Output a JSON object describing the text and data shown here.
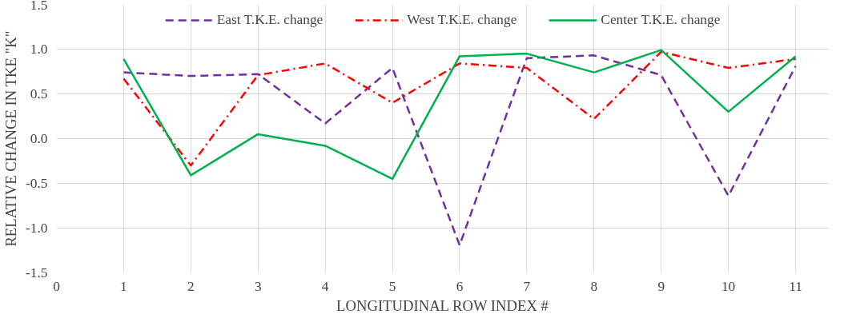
{
  "chart_data": {
    "type": "line",
    "xlabel": "LONGITUDINAL ROW INDEX #",
    "ylabel": "RELATIVE CHANGE IN TKE \"K\"",
    "x": [
      1,
      2,
      3,
      4,
      5,
      6,
      7,
      8,
      9,
      10,
      11
    ],
    "series": [
      {
        "name": "East T.K.E. change",
        "color": "#7030a0",
        "line_style": "dashed",
        "values": [
          0.74,
          0.7,
          0.72,
          0.17,
          0.79,
          -1.19,
          0.9,
          0.93,
          0.71,
          -0.64,
          0.81
        ]
      },
      {
        "name": "West T.K.E. change",
        "color": "#ff0000",
        "line_style": "dashdot",
        "values": [
          0.67,
          -0.3,
          0.71,
          0.84,
          0.4,
          0.84,
          0.79,
          0.22,
          0.97,
          0.79,
          0.89
        ]
      },
      {
        "name": "Center T.K.E. change",
        "color": "#00b050",
        "line_style": "solid",
        "values": [
          0.89,
          -0.41,
          0.05,
          -0.08,
          -0.45,
          0.92,
          0.95,
          0.74,
          0.99,
          0.3,
          0.92
        ]
      }
    ],
    "xlim": [
      0,
      11.5
    ],
    "xticks": [
      0,
      1,
      2,
      3,
      4,
      5,
      6,
      7,
      8,
      9,
      10,
      11
    ],
    "ylim": [
      -1.5,
      1.5
    ],
    "yticks": [
      {
        "value": -1.5,
        "label": "-1.5"
      },
      {
        "value": -1.0,
        "label": "-1.0"
      },
      {
        "value": -0.5,
        "label": "-0.5"
      },
      {
        "value": 0,
        "label": "0.0"
      },
      {
        "value": 0.5,
        "label": "0.5"
      },
      {
        "value": 1.0,
        "label": "1.0"
      },
      {
        "value": 1.5,
        "label": "1.5"
      }
    ],
    "grid": true,
    "legend": "top",
    "marker": "none"
  }
}
